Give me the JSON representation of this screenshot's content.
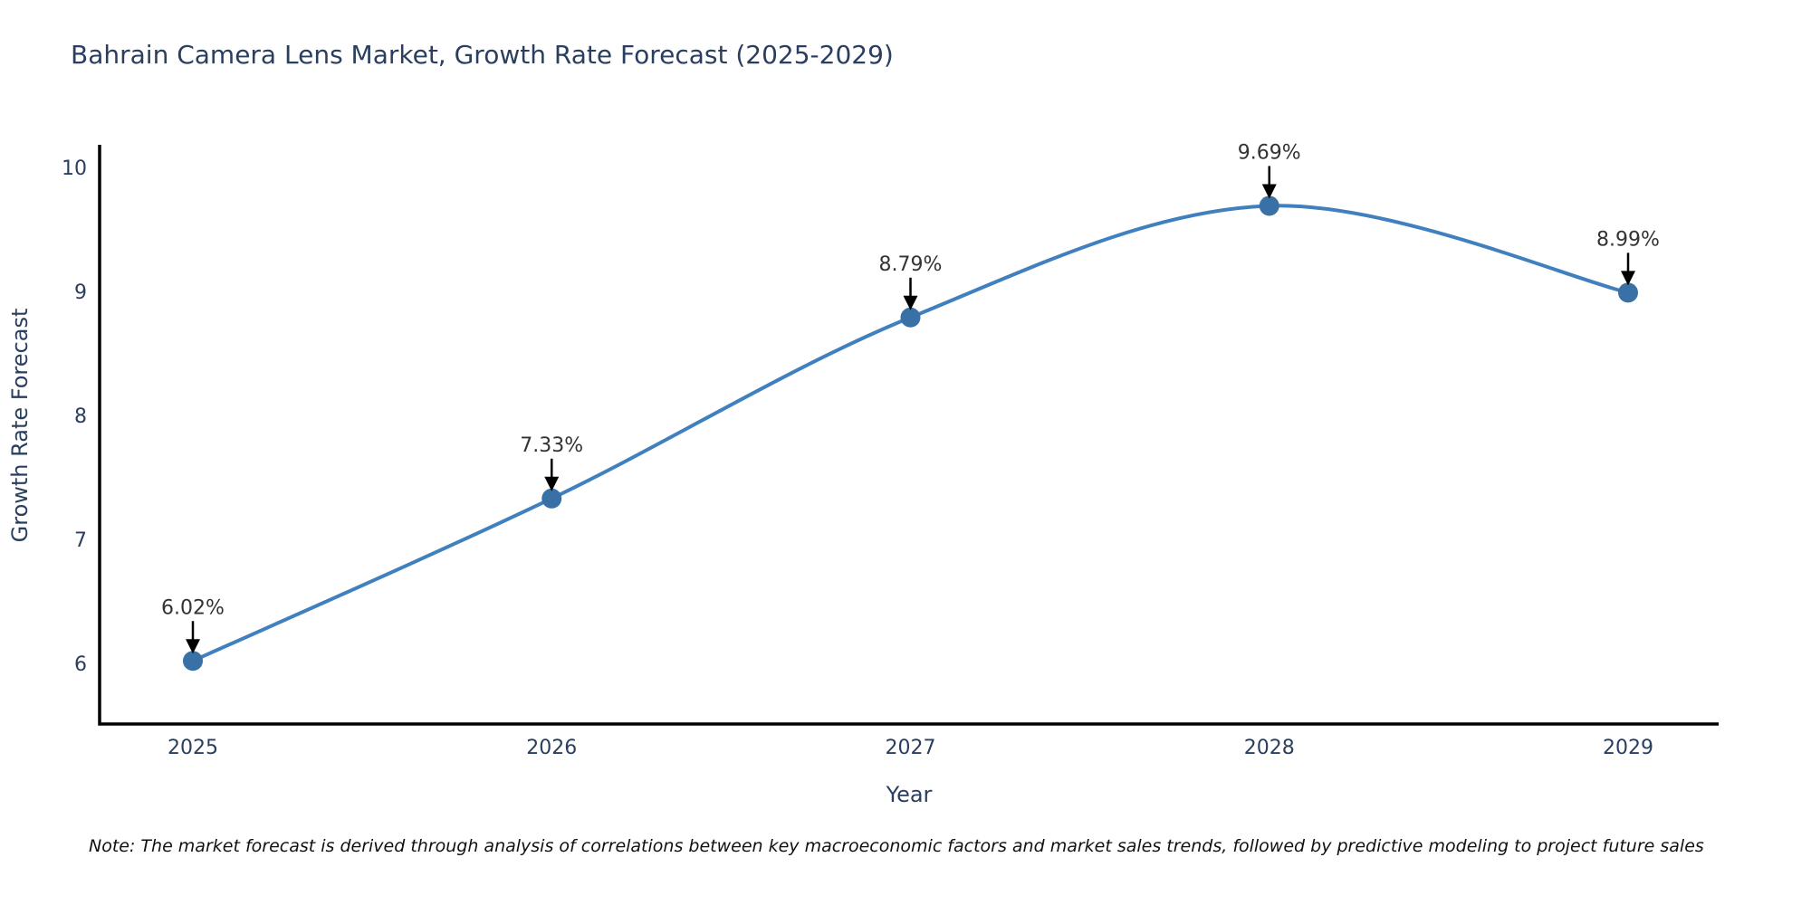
{
  "page": {
    "background": "#ffffff"
  },
  "chart_data": {
    "type": "line",
    "title": "Bahrain Camera Lens Market, Growth Rate Forecast (2025-2029)",
    "xlabel": "Year",
    "ylabel": "Growth Rate Forecast",
    "categories": [
      "2025",
      "2026",
      "2027",
      "2028",
      "2029"
    ],
    "series": [
      {
        "name": "Growth Rate Forecast",
        "values": [
          6.02,
          7.33,
          8.79,
          9.69,
          8.99
        ]
      }
    ],
    "point_labels": [
      "6.02%",
      "7.33%",
      "8.79%",
      "9.69%",
      "8.99%"
    ],
    "yticks": [
      6,
      7,
      8,
      9,
      10
    ],
    "ylim": [
      5.53,
      10.18
    ],
    "line_shape": "spline",
    "grid": false,
    "legend": "none",
    "annotation_arrows": true,
    "colors": {
      "line": "#4080bf",
      "marker": "#3971a6",
      "axis": "#000000",
      "label_text": "#2a3f5f",
      "annotation_text": "#333333",
      "arrow": "#000000",
      "note_text": "#111111"
    },
    "note": "Note: The market forecast is derived through analysis of correlations between key macroeconomic factors and market sales trends, followed by predictive modeling to project future sales"
  }
}
